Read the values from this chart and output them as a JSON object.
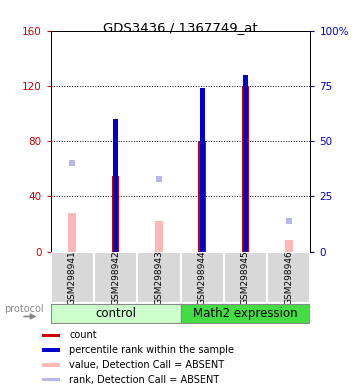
{
  "title": "GDS3436 / 1367749_at",
  "samples": [
    "GSM298941",
    "GSM298942",
    "GSM298943",
    "GSM298944",
    "GSM298945",
    "GSM298946"
  ],
  "red_bars": [
    0,
    55,
    0,
    80,
    120,
    0
  ],
  "blue_bars": [
    0,
    60,
    0,
    74,
    80,
    0
  ],
  "pink_bars": [
    28,
    0,
    22,
    0,
    0,
    8
  ],
  "lb_bars": [
    40,
    0,
    33,
    0,
    0,
    14
  ],
  "ylim_left": [
    0,
    160
  ],
  "ylim_right": [
    0,
    100
  ],
  "yticks_left": [
    0,
    40,
    80,
    120,
    160
  ],
  "yticks_right": [
    0,
    25,
    50,
    75,
    100
  ],
  "yticklabels_right": [
    "0",
    "25",
    "50",
    "75",
    "100%"
  ],
  "left_tick_color": "#cc0000",
  "right_tick_color": "#0000cc",
  "red_color": "#cc0000",
  "blue_color": "#0000cc",
  "pink_color": "#ffb8b8",
  "lb_color": "#b8b8ee",
  "ctrl_color": "#ccffcc",
  "math_color": "#44dd44",
  "legend_items": [
    {
      "color": "#cc0000",
      "label": "count"
    },
    {
      "color": "#0000cc",
      "label": "percentile rank within the sample"
    },
    {
      "color": "#ffb8b8",
      "label": "value, Detection Call = ABSENT"
    },
    {
      "color": "#b8b8ee",
      "label": "rank, Detection Call = ABSENT"
    }
  ]
}
